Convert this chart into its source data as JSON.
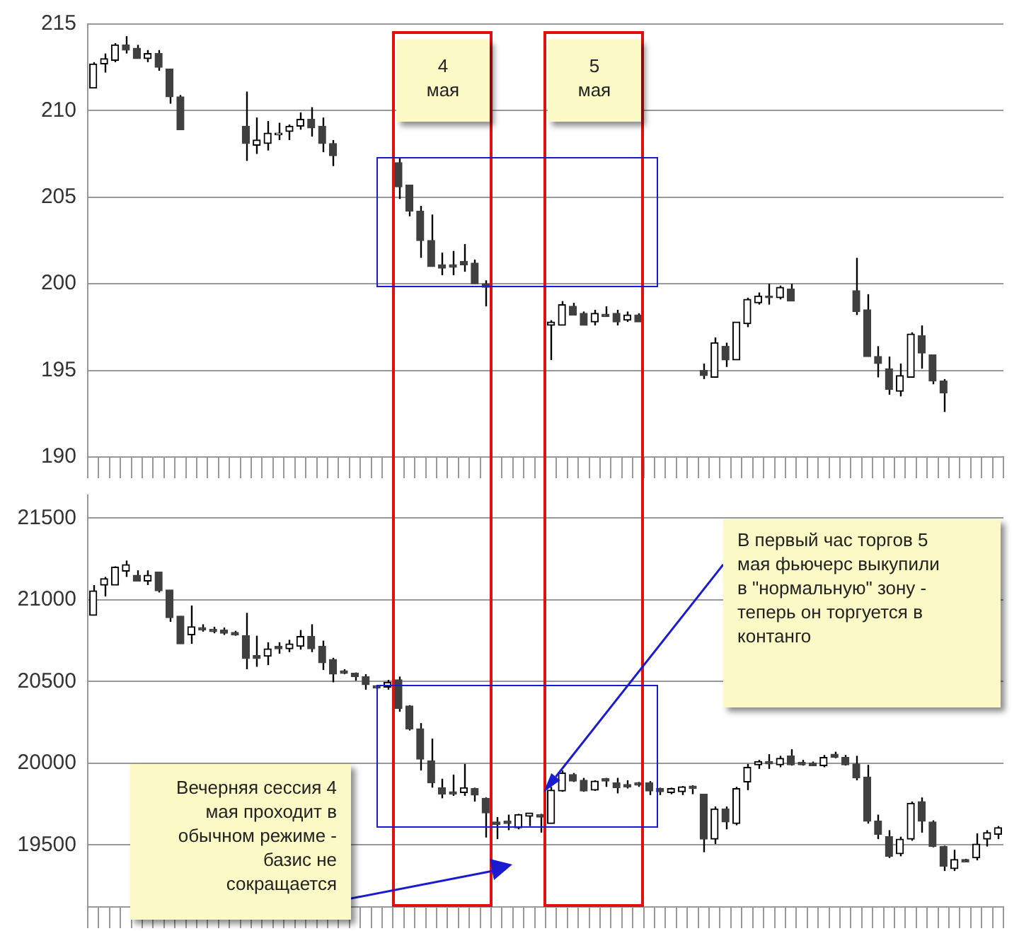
{
  "chart_data": [
    {
      "type": "candlestick",
      "color": "#000000",
      "grid": "y",
      "tick_labels": "y",
      "annotations": [
        "4\nмая",
        "5\nмая"
      ],
      "colors": [
        "#000000",
        "#000000",
        "#000000",
        "#404040",
        "#404040",
        "#000000",
        "#404040",
        "#404040",
        "#404040",
        null,
        null,
        null,
        null,
        null,
        "#404040",
        "#000000",
        "#000000",
        "#000000",
        "#000000",
        "#000000",
        "#404040",
        "#404040",
        "#404040",
        null,
        null,
        null,
        null,
        null,
        "#404040",
        "#404040",
        "#404040",
        "#404040",
        "#404040",
        "#404040",
        "#404040",
        "#404040",
        "#404040",
        null,
        null,
        null,
        null,
        null,
        "#000000",
        "#000000",
        "#404040",
        "#404040",
        "#000000",
        "#404040",
        "#404040",
        "#000000",
        "#404040",
        null,
        null,
        null,
        null,
        null,
        "#404040",
        "#000000",
        "#404040",
        "#000000",
        "#000000",
        "#000000",
        "#404040",
        "#000000",
        "#404040",
        null,
        null,
        null,
        null,
        null,
        "#404040",
        "#404040",
        "#404040",
        "#404040",
        "#000000",
        "#000000",
        "#404040",
        "#404040",
        "#404040",
        null,
        null,
        null,
        null,
        null
      ],
      "ylim": [
        190,
        215
      ],
      "yticks": [
        190,
        195,
        200,
        205,
        210,
        215
      ],
      "categories": [
        null,
        null,
        null,
        null,
        null,
        null,
        null,
        null,
        null,
        null,
        null,
        null,
        null,
        null,
        null,
        null,
        null,
        null,
        null,
        null,
        null,
        null,
        null,
        null,
        null,
        null,
        null,
        null,
        null,
        null,
        null,
        null,
        null,
        null,
        null,
        null,
        null,
        null,
        null,
        null,
        null,
        null,
        null,
        null,
        null,
        null,
        null,
        null,
        null,
        null,
        null,
        null,
        null,
        null,
        null,
        null,
        null,
        null,
        null,
        null,
        null,
        null,
        null,
        null,
        null,
        null,
        null,
        null,
        null,
        null,
        null,
        null,
        null,
        null,
        null,
        null,
        null,
        null,
        null,
        null,
        null,
        null,
        null,
        null
      ],
      "ohlc": [
        [
          211.3,
          212.8,
          211.3,
          212.7
        ],
        [
          212.7,
          213.3,
          212.2,
          213.0
        ],
        [
          212.9,
          213.9,
          212.8,
          213.8
        ],
        [
          213.8,
          214.3,
          213.3,
          213.5
        ],
        [
          213.6,
          213.8,
          213.0,
          213.0
        ],
        [
          213.0,
          213.5,
          212.8,
          213.3
        ],
        [
          213.3,
          213.5,
          212.3,
          212.5
        ],
        [
          212.4,
          212.4,
          210.4,
          210.8
        ],
        [
          210.8,
          210.9,
          208.9,
          208.9
        ],
        null,
        null,
        null,
        null,
        null,
        [
          209.1,
          211.1,
          207.1,
          208.1
        ],
        [
          208.0,
          209.6,
          207.5,
          208.3
        ],
        [
          208.1,
          209.4,
          207.7,
          208.7
        ],
        [
          208.6,
          209.3,
          208.3,
          208.7
        ],
        [
          208.8,
          209.2,
          208.3,
          209.1
        ],
        [
          209.1,
          209.9,
          208.9,
          209.5
        ],
        [
          209.5,
          210.2,
          208.5,
          209.0
        ],
        [
          209.1,
          209.6,
          207.6,
          208.1
        ],
        [
          208.1,
          208.3,
          206.8,
          207.4
        ],
        null,
        null,
        null,
        null,
        null,
        [
          207.0,
          207.3,
          204.9,
          205.6
        ],
        [
          205.7,
          205.7,
          203.9,
          204.2
        ],
        [
          204.2,
          204.5,
          201.5,
          202.5
        ],
        [
          202.5,
          204.0,
          201.0,
          201.0
        ],
        [
          201.1,
          201.8,
          200.5,
          200.9
        ],
        [
          201.1,
          201.9,
          200.5,
          200.95
        ],
        [
          201.3,
          202.3,
          200.7,
          201.1
        ],
        [
          201.2,
          201.4,
          200.0,
          200.0
        ],
        [
          200.0,
          200.2,
          198.7,
          199.8
        ],
        null,
        null,
        null,
        null,
        null,
        [
          197.6,
          197.9,
          195.6,
          197.8
        ],
        [
          197.6,
          199.0,
          197.6,
          198.8
        ],
        [
          198.7,
          198.9,
          198.2,
          198.2
        ],
        [
          198.3,
          198.4,
          197.6,
          197.6
        ],
        [
          197.8,
          198.5,
          197.6,
          198.3
        ],
        [
          198.25,
          198.7,
          198.1,
          198.1
        ],
        [
          198.3,
          198.5,
          197.6,
          197.8
        ],
        [
          197.9,
          198.4,
          197.8,
          198.2
        ],
        [
          198.2,
          198.3,
          197.8,
          197.8
        ],
        null,
        null,
        null,
        null,
        null,
        [
          195.0,
          195.4,
          194.5,
          194.7
        ],
        [
          194.6,
          196.9,
          194.6,
          196.6
        ],
        [
          196.4,
          196.6,
          195.2,
          195.6
        ],
        [
          195.6,
          197.8,
          195.6,
          197.8
        ],
        [
          197.7,
          199.2,
          197.5,
          199.1
        ],
        [
          198.9,
          199.5,
          198.8,
          199.3
        ],
        [
          199.3,
          200.0,
          198.8,
          199.2
        ],
        [
          199.2,
          199.9,
          199.1,
          199.8
        ],
        [
          199.7,
          200.0,
          199.0,
          199.0
        ],
        null,
        null,
        null,
        null,
        null,
        [
          199.6,
          201.5,
          198.2,
          198.4
        ],
        [
          198.5,
          199.4,
          195.8,
          195.8
        ],
        [
          195.8,
          196.4,
          194.6,
          195.4
        ],
        [
          195.1,
          195.8,
          193.6,
          193.9
        ],
        [
          193.8,
          195.4,
          193.5,
          194.7
        ],
        [
          194.6,
          197.2,
          194.6,
          197.1
        ],
        [
          197.0,
          197.6,
          195.1,
          196.0
        ],
        [
          195.9,
          195.9,
          194.2,
          194.4
        ],
        [
          194.4,
          194.5,
          192.6,
          193.7
        ],
        null,
        null,
        null,
        null,
        null
      ]
    },
    {
      "type": "candlestick",
      "color": "#000000",
      "grid": "y",
      "tick_labels": "y",
      "colors": [
        "#000000",
        "#000000",
        "#000000",
        "#000000",
        "#404040",
        "#000000",
        "#404040",
        "#404040",
        "#404040",
        "#000000",
        "#404040",
        "#404040",
        "#404040",
        "#404040",
        "#404040",
        "#404040",
        "#000000",
        "#404040",
        "#000000",
        "#000000",
        "#404040",
        "#404040",
        "#404040",
        "#404040",
        "#404040",
        "#404040",
        "#404040",
        "#000000",
        "#404040",
        "#404040",
        "#404040",
        "#404040",
        "#404040",
        "#404040",
        "#000000",
        "#404040",
        "#404040",
        "#404040",
        "#404040",
        "#000000",
        "#000000",
        "#404040",
        "#000000",
        "#000000",
        "#404040",
        "#404040",
        "#000000",
        "#404040",
        "#404040",
        "#404040",
        "#404040",
        "#404040",
        "#404040",
        "#000000",
        "#000000",
        "#404040",
        "#404040",
        "#000000",
        "#404040",
        "#000000",
        "#000000",
        "#000000",
        "#404040",
        "#000000",
        "#404040",
        "#404040",
        "#404040",
        "#000000",
        "#404040",
        "#404040",
        "#404040",
        "#404040",
        "#404040",
        "#404040",
        "#000000",
        "#000000",
        "#404040",
        "#404040",
        "#404040",
        "#000000",
        "#404040",
        "#000000",
        "#000000",
        "#000000"
      ],
      "annotations": [
        "Вечерняя сессия 4\nмая проходит в\nобычном режиме -\nбазис не\nсокращается",
        "В первый час торгов 5\nмая фьючерс выкупили\nв \"нормальную\" зону -\nтеперь он торгуется в\nконтанго"
      ],
      "ylim": [
        19120,
        21640
      ],
      "yticks": [
        19500,
        20000,
        20500,
        21000,
        21500
      ],
      "categories": [
        null,
        null,
        null,
        null,
        null,
        null,
        null,
        null,
        null,
        null,
        null,
        null,
        null,
        null,
        null,
        null,
        null,
        null,
        null,
        null,
        null,
        null,
        null,
        null,
        null,
        null,
        null,
        null,
        null,
        null,
        null,
        null,
        null,
        null,
        null,
        null,
        null,
        null,
        null,
        null,
        null,
        null,
        null,
        null,
        null,
        null,
        null,
        null,
        null,
        null,
        null,
        null,
        null,
        null,
        null,
        null,
        null,
        null,
        null,
        null,
        null,
        null,
        null,
        null,
        null,
        null,
        null,
        null,
        null,
        null,
        null,
        null,
        null,
        null,
        null,
        null,
        null,
        null,
        null,
        null,
        null,
        null,
        null,
        null
      ],
      "ohlc": [
        [
          20905,
          21090,
          20905,
          21055
        ],
        [
          21090,
          21140,
          21020,
          21130
        ],
        [
          21090,
          21205,
          21090,
          21200
        ],
        [
          21175,
          21240,
          21140,
          21215
        ],
        [
          21150,
          21180,
          21115,
          21115
        ],
        [
          21115,
          21180,
          21090,
          21150
        ],
        [
          21170,
          21170,
          21045,
          21055
        ],
        [
          21060,
          21060,
          20865,
          20890
        ],
        [
          20900,
          20900,
          20730,
          20730
        ],
        [
          20785,
          20965,
          20730,
          20835
        ],
        [
          20830,
          20850,
          20805,
          20815
        ],
        [
          20820,
          20835,
          20795,
          20805
        ],
        [
          20815,
          20830,
          20785,
          20795
        ],
        [
          20800,
          20810,
          20780,
          20785
        ],
        [
          20780,
          20920,
          20575,
          20640
        ],
        [
          20660,
          20780,
          20590,
          20640
        ],
        [
          20655,
          20740,
          20600,
          20700
        ],
        [
          20715,
          20740,
          20670,
          20700
        ],
        [
          20700,
          20755,
          20680,
          20730
        ],
        [
          20715,
          20815,
          20695,
          20775
        ],
        [
          20775,
          20850,
          20680,
          20700
        ],
        [
          20715,
          20750,
          20570,
          20615
        ],
        [
          20635,
          20645,
          20495,
          20545
        ],
        [
          20565,
          20575,
          20545,
          20550
        ],
        [
          20550,
          20555,
          20505,
          20530
        ],
        [
          20530,
          20545,
          20450,
          20480
        ],
        [
          20475,
          20475,
          20450,
          20460
        ],
        [
          20465,
          20510,
          20450,
          20495
        ],
        [
          20510,
          20530,
          20315,
          20335
        ],
        [
          20350,
          20355,
          20200,
          20210
        ],
        [
          20210,
          20245,
          19955,
          20025
        ],
        [
          20015,
          20150,
          19850,
          19880
        ],
        [
          19850,
          19905,
          19785,
          19810
        ],
        [
          19825,
          19930,
          19800,
          19810
        ],
        [
          19820,
          19995,
          19800,
          19850
        ],
        [
          19845,
          19850,
          19765,
          19805
        ],
        [
          19785,
          19790,
          19545,
          19695
        ],
        [
          19640,
          19670,
          19535,
          19625
        ],
        [
          19645,
          19685,
          19590,
          19630
        ],
        [
          19605,
          19690,
          19595,
          19685
        ],
        [
          19675,
          19695,
          19615,
          19695
        ],
        [
          19685,
          19690,
          19575,
          19670
        ],
        [
          19630,
          19855,
          19630,
          19835
        ],
        [
          19830,
          19955,
          19825,
          19940
        ],
        [
          19930,
          19940,
          19885,
          19890
        ],
        [
          19895,
          19910,
          19825,
          19830
        ],
        [
          19835,
          19895,
          19830,
          19890
        ],
        [
          19905,
          19910,
          19855,
          19890
        ],
        [
          19880,
          19910,
          19815,
          19850
        ],
        [
          19870,
          19895,
          19845,
          19855
        ],
        [
          19880,
          19885,
          19855,
          19865
        ],
        [
          19880,
          19890,
          19805,
          19830
        ],
        [
          19845,
          19850,
          19805,
          19825
        ],
        [
          19820,
          19850,
          19810,
          19845
        ],
        [
          19825,
          19860,
          19805,
          19855
        ],
        [
          19860,
          19865,
          19810,
          19845
        ],
        [
          19810,
          19810,
          19455,
          19535
        ],
        [
          19535,
          19735,
          19505,
          19720
        ],
        [
          19720,
          19735,
          19595,
          19640
        ],
        [
          19630,
          19855,
          19620,
          19845
        ],
        [
          19885,
          19995,
          19835,
          19975
        ],
        [
          19990,
          20020,
          19965,
          20010
        ],
        [
          20010,
          20055,
          19965,
          19995
        ],
        [
          19990,
          20045,
          19975,
          20030
        ],
        [
          20045,
          20085,
          19985,
          19990
        ],
        [
          20005,
          20020,
          19985,
          19990
        ],
        [
          20000,
          20010,
          19985,
          19985
        ],
        [
          19985,
          20050,
          19975,
          20035
        ],
        [
          20055,
          20070,
          20030,
          20035
        ],
        [
          20035,
          20050,
          19985,
          19990
        ],
        [
          19995,
          20045,
          19895,
          19910
        ],
        [
          19915,
          19990,
          19630,
          19645
        ],
        [
          19645,
          19685,
          19535,
          19565
        ],
        [
          19550,
          19590,
          19420,
          19430
        ],
        [
          19445,
          19550,
          19430,
          19535
        ],
        [
          19535,
          19765,
          19525,
          19755
        ],
        [
          19765,
          19790,
          19575,
          19645
        ],
        [
          19640,
          19650,
          19485,
          19490
        ],
        [
          19490,
          19495,
          19340,
          19370
        ],
        [
          19355,
          19470,
          19340,
          19410
        ],
        [
          19410,
          19415,
          19395,
          19395
        ],
        [
          19420,
          19570,
          19405,
          19505
        ],
        [
          19535,
          19590,
          19490,
          19575
        ],
        [
          19565,
          19615,
          19535,
          19605
        ]
      ]
    }
  ]
}
